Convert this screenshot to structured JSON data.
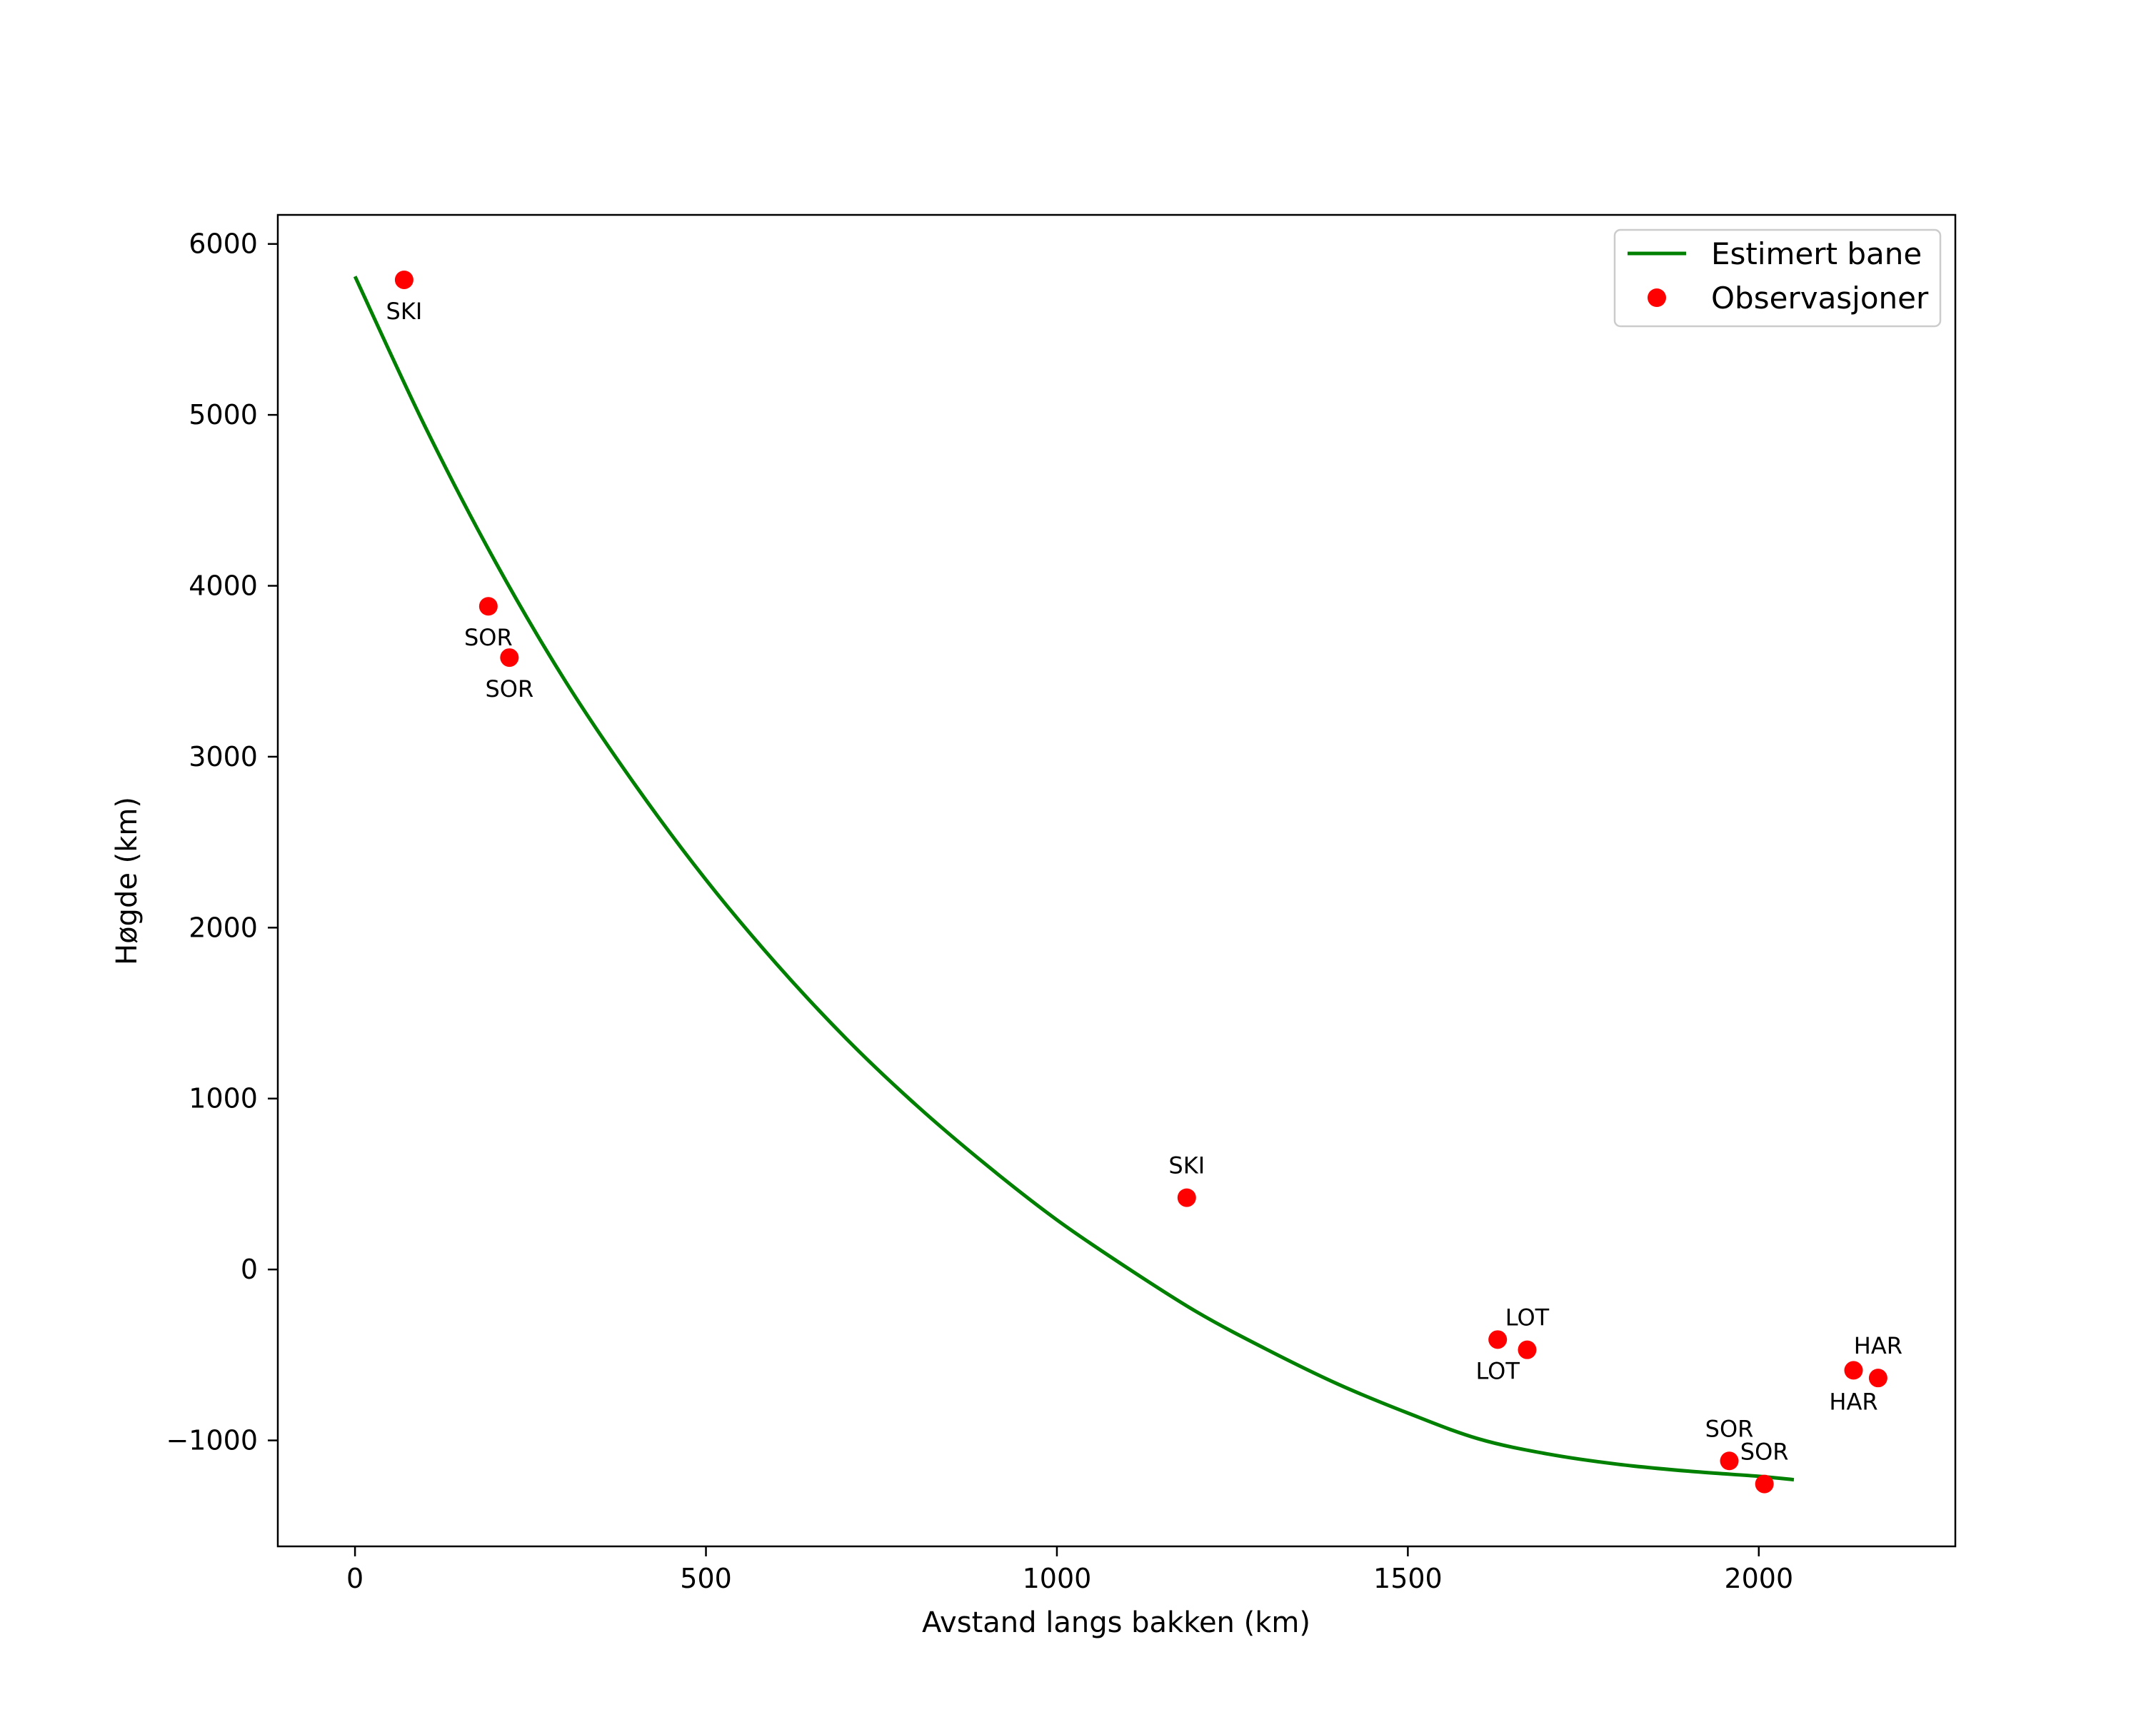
{
  "chart_data": {
    "type": "scatter",
    "title": "",
    "xlabel": "Avstand langs bakken (km)",
    "ylabel": "Høgde (km)",
    "xlim": [
      -110,
      2280
    ],
    "ylim": [
      -1620,
      6170
    ],
    "xticks": [
      0,
      500,
      1000,
      1500,
      2000
    ],
    "xtick_labels": [
      "0",
      "500",
      "1000",
      "1500",
      "2000"
    ],
    "yticks": [
      -1000,
      0,
      1000,
      2000,
      3000,
      4000,
      5000,
      6000
    ],
    "ytick_labels": [
      "−1000",
      "0",
      "1000",
      "2000",
      "3000",
      "4000",
      "5000",
      "6000"
    ],
    "grid": false,
    "legend_position": "top-right",
    "colors": {
      "line": "#008000",
      "points": "#ff0000",
      "axes": "#000000"
    },
    "series": [
      {
        "name": "Estimert bane",
        "kind": "line",
        "x": [
          0,
          100,
          200,
          300,
          400,
          500,
          600,
          700,
          800,
          900,
          1000,
          1100,
          1200,
          1300,
          1400,
          1500,
          1600,
          1700,
          1800,
          1900,
          2000,
          2050
        ],
        "y": [
          5810,
          4930,
          4140,
          3440,
          2830,
          2280,
          1790,
          1350,
          960,
          610,
          290,
          10,
          -250,
          -470,
          -670,
          -840,
          -990,
          -1080,
          -1140,
          -1180,
          -1210,
          -1230
        ]
      },
      {
        "name": "Observasjoner",
        "kind": "scatter",
        "points": [
          {
            "x": 70,
            "y": 5790,
            "label": "SKI",
            "label_pos": "below"
          },
          {
            "x": 190,
            "y": 3880,
            "label": "SOR",
            "label_pos": "below"
          },
          {
            "x": 220,
            "y": 3580,
            "label": "SOR",
            "label_pos": "below"
          },
          {
            "x": 1185,
            "y": 420,
            "label": "SKI",
            "label_pos": "above"
          },
          {
            "x": 1628,
            "y": -410,
            "label": "LOT",
            "label_pos": "below"
          },
          {
            "x": 1670,
            "y": -470,
            "label": "LOT",
            "label_pos": "above"
          },
          {
            "x": 1958,
            "y": -1120,
            "label": "SOR",
            "label_pos": "above"
          },
          {
            "x": 2008,
            "y": -1255,
            "label": "SOR",
            "label_pos": "above"
          },
          {
            "x": 2135,
            "y": -590,
            "label": "HAR",
            "label_pos": "below"
          },
          {
            "x": 2170,
            "y": -635,
            "label": "HAR",
            "label_pos": "above"
          }
        ]
      }
    ]
  }
}
